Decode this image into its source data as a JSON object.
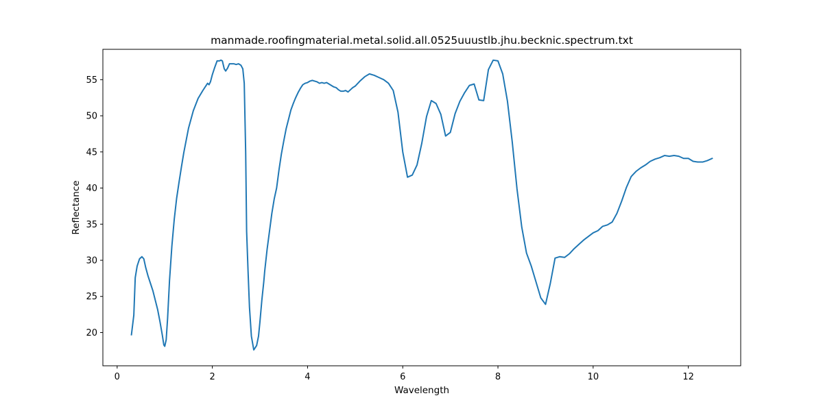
{
  "chart_data": {
    "type": "line",
    "title": "manmade.roofingmaterial.metal.solid.all.0525uuustlb.jhu.becknic.spectrum.txt",
    "xlabel": "Wavelength",
    "ylabel": "Reflectance",
    "xlim": [
      -0.3,
      13.1
    ],
    "ylim": [
      15.4,
      59.2
    ],
    "xticks": [
      0,
      2,
      4,
      6,
      8,
      10,
      12
    ],
    "yticks": [
      20,
      25,
      30,
      35,
      40,
      45,
      50,
      55
    ],
    "grid": false,
    "legend": "none",
    "series": [
      {
        "color": "#1f77b4",
        "x": [
          0.3,
          0.35,
          0.38,
          0.42,
          0.47,
          0.52,
          0.56,
          0.6,
          0.65,
          0.7,
          0.75,
          0.8,
          0.85,
          0.9,
          0.95,
          0.98,
          1.0,
          1.03,
          1.06,
          1.1,
          1.15,
          1.2,
          1.25,
          1.3,
          1.35,
          1.4,
          1.5,
          1.6,
          1.7,
          1.8,
          1.85,
          1.9,
          1.93,
          1.96,
          2.0,
          2.05,
          2.1,
          2.15,
          2.18,
          2.21,
          2.25,
          2.28,
          2.32,
          2.36,
          2.4,
          2.45,
          2.5,
          2.55,
          2.6,
          2.64,
          2.67,
          2.7,
          2.72,
          2.75,
          2.78,
          2.82,
          2.87,
          2.93,
          2.97,
          3.0,
          3.04,
          3.08,
          3.1,
          3.15,
          3.2,
          3.25,
          3.3,
          3.35,
          3.4,
          3.45,
          3.5,
          3.55,
          3.6,
          3.65,
          3.7,
          3.75,
          3.8,
          3.85,
          3.9,
          3.95,
          4.0,
          4.05,
          4.1,
          4.15,
          4.2,
          4.25,
          4.3,
          4.35,
          4.4,
          4.45,
          4.5,
          4.55,
          4.6,
          4.65,
          4.7,
          4.75,
          4.8,
          4.85,
          4.9,
          4.95,
          5.0,
          5.1,
          5.2,
          5.3,
          5.4,
          5.5,
          5.6,
          5.7,
          5.8,
          5.9,
          6.0,
          6.1,
          6.2,
          6.3,
          6.4,
          6.5,
          6.6,
          6.7,
          6.8,
          6.9,
          7.0,
          7.1,
          7.2,
          7.3,
          7.4,
          7.5,
          7.6,
          7.7,
          7.8,
          7.9,
          8.0,
          8.1,
          8.2,
          8.3,
          8.4,
          8.5,
          8.6,
          8.7,
          8.8,
          8.9,
          9.0,
          9.1,
          9.2,
          9.3,
          9.4,
          9.5,
          9.6,
          9.7,
          9.8,
          9.9,
          10.0,
          10.1,
          10.2,
          10.3,
          10.4,
          10.5,
          10.6,
          10.7,
          10.8,
          10.9,
          11.0,
          11.1,
          11.2,
          11.3,
          11.4,
          11.5,
          11.6,
          11.7,
          11.8,
          11.9,
          12.0,
          12.1,
          12.2,
          12.3,
          12.4,
          12.5
        ],
        "y": [
          19.7,
          22.4,
          27.6,
          29.2,
          30.2,
          30.5,
          30.2,
          29.0,
          27.8,
          26.8,
          25.8,
          24.5,
          23.2,
          21.5,
          19.6,
          18.3,
          18.1,
          19.0,
          22.0,
          27.2,
          32.0,
          35.7,
          38.6,
          40.8,
          42.9,
          44.9,
          48.3,
          50.7,
          52.4,
          53.5,
          54.0,
          54.5,
          54.3,
          54.7,
          55.7,
          56.7,
          57.6,
          57.6,
          57.7,
          57.6,
          56.5,
          56.2,
          56.6,
          57.2,
          57.2,
          57.2,
          57.1,
          57.2,
          57.0,
          56.5,
          54.5,
          45.0,
          34.0,
          28.5,
          23.5,
          19.5,
          17.6,
          18.2,
          19.5,
          21.5,
          24.5,
          27.0,
          28.5,
          31.5,
          34.0,
          36.5,
          38.5,
          40.0,
          42.5,
          44.7,
          46.5,
          48.2,
          49.5,
          50.8,
          51.7,
          52.5,
          53.2,
          53.8,
          54.3,
          54.5,
          54.6,
          54.8,
          54.9,
          54.8,
          54.7,
          54.5,
          54.6,
          54.5,
          54.6,
          54.4,
          54.2,
          54.0,
          53.9,
          53.6,
          53.4,
          53.4,
          53.5,
          53.3,
          53.6,
          53.9,
          54.1,
          54.8,
          55.4,
          55.8,
          55.6,
          55.3,
          55.0,
          54.5,
          53.5,
          50.5,
          45.0,
          41.5,
          41.8,
          43.2,
          46.2,
          49.9,
          52.1,
          51.7,
          50.2,
          47.2,
          47.7,
          50.3,
          52.0,
          53.2,
          54.2,
          54.4,
          52.2,
          52.1,
          56.4,
          57.7,
          57.6,
          55.8,
          52.0,
          46.4,
          39.9,
          34.6,
          31.0,
          29.2,
          27.0,
          24.8,
          23.9,
          26.8,
          30.3,
          30.5,
          30.4,
          30.9,
          31.6,
          32.2,
          32.8,
          33.3,
          33.8,
          34.1,
          34.7,
          34.9,
          35.3,
          36.5,
          38.2,
          40.1,
          41.6,
          42.3,
          42.8,
          43.2,
          43.7,
          44.0,
          44.2,
          44.5,
          44.4,
          44.5,
          44.4,
          44.1,
          44.1,
          43.7,
          43.6,
          43.6,
          43.8,
          44.1
        ]
      }
    ]
  }
}
